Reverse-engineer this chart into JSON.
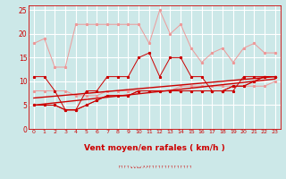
{
  "background_color": "#cce8e8",
  "grid_color": "#ffffff",
  "line_color_dark": "#cc0000",
  "line_color_light": "#ee9999",
  "xlabel": "Vent moyen/en rafales ( km/h )",
  "xlim": [
    -0.5,
    23.5
  ],
  "ylim": [
    0,
    26
  ],
  "yticks": [
    0,
    5,
    10,
    15,
    20,
    25
  ],
  "xticks": [
    0,
    1,
    2,
    3,
    4,
    5,
    6,
    7,
    8,
    9,
    10,
    11,
    12,
    13,
    14,
    15,
    16,
    17,
    18,
    19,
    20,
    21,
    22,
    23
  ],
  "light_rafales_x": [
    0,
    1,
    2,
    3,
    4,
    5,
    6,
    7,
    8,
    9,
    10,
    11,
    12,
    13,
    14,
    15,
    16,
    17,
    18,
    19,
    20,
    21,
    22,
    23
  ],
  "light_rafales_y": [
    18,
    19,
    13,
    13,
    22,
    22,
    22,
    22,
    22,
    22,
    22,
    18,
    25,
    20,
    22,
    17,
    14,
    16,
    17,
    14,
    17,
    18,
    16,
    16
  ],
  "light_mean_x": [
    0,
    1,
    2,
    3,
    4,
    5,
    6,
    7,
    8,
    9,
    10,
    11,
    12,
    13,
    14,
    15,
    16,
    17,
    18,
    19,
    20,
    21,
    22,
    23
  ],
  "light_mean_y": [
    8,
    8,
    8,
    8,
    7,
    7,
    7,
    8,
    8,
    8,
    8,
    8,
    8,
    8,
    9,
    9,
    9,
    9,
    9,
    9,
    9,
    9,
    9,
    10
  ],
  "dark_gusts_x": [
    0,
    1,
    2,
    3,
    4,
    5,
    6,
    7,
    8,
    9,
    10,
    11,
    12,
    13,
    14,
    15,
    16,
    17,
    18,
    19,
    20,
    21,
    22,
    23
  ],
  "dark_gusts_y": [
    11,
    11,
    8,
    4,
    4,
    8,
    8,
    11,
    11,
    11,
    15,
    16,
    11,
    15,
    15,
    11,
    11,
    8,
    8,
    8,
    11,
    11,
    11,
    11
  ],
  "dark_mean1_x": [
    0,
    1,
    2,
    3,
    4,
    5,
    6,
    7,
    8,
    9,
    10,
    11,
    12,
    13,
    14,
    15,
    16,
    17,
    18,
    19,
    20,
    21,
    22,
    23
  ],
  "dark_mean1_y": [
    5,
    5,
    5,
    4,
    4,
    5,
    6,
    7,
    7,
    7,
    8,
    8,
    8,
    8,
    8,
    8,
    8,
    8,
    8,
    9,
    9,
    10,
    11,
    11
  ],
  "dark_mean2_x": [
    0,
    2,
    3,
    4,
    5,
    6,
    7,
    8,
    9,
    10,
    11,
    12,
    13,
    14,
    15,
    16,
    17,
    18,
    19,
    20,
    21,
    22,
    23
  ],
  "dark_mean2_y": [
    5,
    5,
    4,
    4,
    5,
    6,
    7,
    7,
    7,
    8,
    8,
    8,
    8,
    8,
    8,
    8,
    8,
    8,
    9,
    9,
    10,
    11,
    11
  ],
  "trend1_x": [
    0,
    23
  ],
  "trend1_y": [
    5.0,
    10.5
  ],
  "trend2_x": [
    0,
    23
  ],
  "trend2_y": [
    6.5,
    11.0
  ],
  "arrows": "↑↑↑↑↘↘↘↙↗↗↑↑↑↑↑↑↑↑↑↑↑↑↑↑"
}
